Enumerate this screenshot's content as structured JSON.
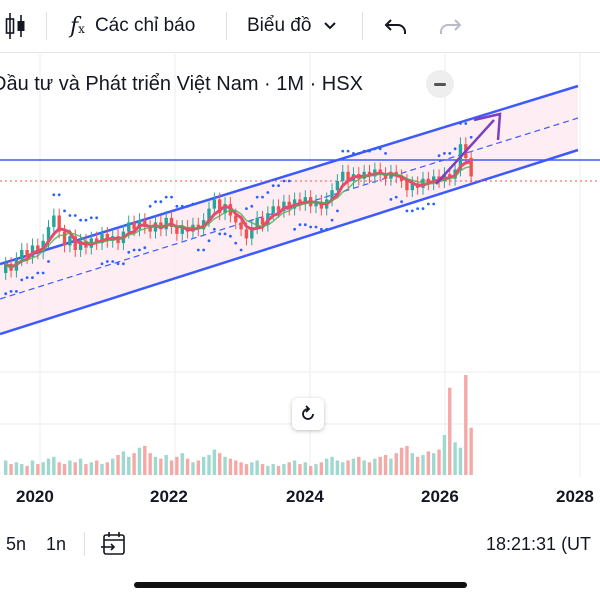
{
  "toolbar": {
    "indicators_label": "Các chỉ báo",
    "chart_type_label": "Biểu đồ"
  },
  "symbol_title": "Đầu tư và Phát triển Việt Nam · 1M · HSX",
  "x_axis_labels": [
    "2020",
    "2022",
    "2024",
    "2026",
    "2028"
  ],
  "bottom_bar": {
    "range_5y": "5n",
    "range_1y": "1n",
    "clock": "18:21:31 (UT"
  },
  "colors": {
    "up": "#26a69a",
    "down": "#ef5350",
    "channel": "#3d5afe",
    "channel_fill": "#fde8ef",
    "arrow": "#7e3fbf",
    "ma": "#e84a6f",
    "ma2": "#4caf50"
  },
  "chart_data": {
    "type": "candlestick",
    "x_ticks": [
      "2020",
      "2022",
      "2024",
      "2026",
      "2028"
    ],
    "candles": [
      {
        "o": 0.3,
        "c": 0.34
      },
      {
        "o": 0.34,
        "c": 0.31
      },
      {
        "o": 0.31,
        "c": 0.36
      },
      {
        "o": 0.36,
        "c": 0.4
      },
      {
        "o": 0.4,
        "c": 0.37
      },
      {
        "o": 0.37,
        "c": 0.42
      },
      {
        "o": 0.42,
        "c": 0.39
      },
      {
        "o": 0.39,
        "c": 0.44
      },
      {
        "o": 0.44,
        "c": 0.5
      },
      {
        "o": 0.5,
        "c": 0.55
      },
      {
        "o": 0.55,
        "c": 0.48
      },
      {
        "o": 0.48,
        "c": 0.42
      },
      {
        "o": 0.42,
        "c": 0.46
      },
      {
        "o": 0.46,
        "c": 0.4
      },
      {
        "o": 0.4,
        "c": 0.44
      },
      {
        "o": 0.44,
        "c": 0.41
      },
      {
        "o": 0.41,
        "c": 0.45
      },
      {
        "o": 0.45,
        "c": 0.43
      },
      {
        "o": 0.43,
        "c": 0.47
      },
      {
        "o": 0.47,
        "c": 0.44
      },
      {
        "o": 0.44,
        "c": 0.46
      },
      {
        "o": 0.46,
        "c": 0.43
      },
      {
        "o": 0.43,
        "c": 0.48
      },
      {
        "o": 0.48,
        "c": 0.52
      },
      {
        "o": 0.52,
        "c": 0.49
      },
      {
        "o": 0.49,
        "c": 0.53
      },
      {
        "o": 0.53,
        "c": 0.5
      },
      {
        "o": 0.5,
        "c": 0.48
      },
      {
        "o": 0.48,
        "c": 0.52
      },
      {
        "o": 0.52,
        "c": 0.49
      },
      {
        "o": 0.49,
        "c": 0.54
      },
      {
        "o": 0.54,
        "c": 0.5
      },
      {
        "o": 0.5,
        "c": 0.47
      },
      {
        "o": 0.47,
        "c": 0.5
      },
      {
        "o": 0.5,
        "c": 0.48
      },
      {
        "o": 0.48,
        "c": 0.51
      },
      {
        "o": 0.51,
        "c": 0.49
      },
      {
        "o": 0.49,
        "c": 0.53
      },
      {
        "o": 0.53,
        "c": 0.58
      },
      {
        "o": 0.58,
        "c": 0.62
      },
      {
        "o": 0.62,
        "c": 0.56
      },
      {
        "o": 0.56,
        "c": 0.6
      },
      {
        "o": 0.6,
        "c": 0.55
      },
      {
        "o": 0.55,
        "c": 0.52
      },
      {
        "o": 0.52,
        "c": 0.49
      },
      {
        "o": 0.49,
        "c": 0.45
      },
      {
        "o": 0.45,
        "c": 0.5
      },
      {
        "o": 0.5,
        "c": 0.54
      },
      {
        "o": 0.54,
        "c": 0.51
      },
      {
        "o": 0.51,
        "c": 0.56
      },
      {
        "o": 0.56,
        "c": 0.59
      },
      {
        "o": 0.59,
        "c": 0.57
      },
      {
        "o": 0.57,
        "c": 0.61
      },
      {
        "o": 0.61,
        "c": 0.58
      },
      {
        "o": 0.58,
        "c": 0.62
      },
      {
        "o": 0.62,
        "c": 0.6
      },
      {
        "o": 0.6,
        "c": 0.63
      },
      {
        "o": 0.63,
        "c": 0.59
      },
      {
        "o": 0.59,
        "c": 0.61
      },
      {
        "o": 0.61,
        "c": 0.58
      },
      {
        "o": 0.58,
        "c": 0.62
      },
      {
        "o": 0.62,
        "c": 0.66
      },
      {
        "o": 0.66,
        "c": 0.7
      },
      {
        "o": 0.7,
        "c": 0.74
      },
      {
        "o": 0.74,
        "c": 0.7
      },
      {
        "o": 0.7,
        "c": 0.73
      },
      {
        "o": 0.73,
        "c": 0.71
      },
      {
        "o": 0.71,
        "c": 0.74
      },
      {
        "o": 0.74,
        "c": 0.72
      },
      {
        "o": 0.72,
        "c": 0.75
      },
      {
        "o": 0.75,
        "c": 0.73
      },
      {
        "o": 0.73,
        "c": 0.71
      },
      {
        "o": 0.71,
        "c": 0.74
      },
      {
        "o": 0.74,
        "c": 0.72
      },
      {
        "o": 0.72,
        "c": 0.7
      },
      {
        "o": 0.7,
        "c": 0.66
      },
      {
        "o": 0.66,
        "c": 0.69
      },
      {
        "o": 0.69,
        "c": 0.67
      },
      {
        "o": 0.67,
        "c": 0.71
      },
      {
        "o": 0.71,
        "c": 0.69
      },
      {
        "o": 0.69,
        "c": 0.72
      },
      {
        "o": 0.72,
        "c": 0.7
      },
      {
        "o": 0.7,
        "c": 0.73
      },
      {
        "o": 0.73,
        "c": 0.71
      },
      {
        "o": 0.71,
        "c": 0.75
      },
      {
        "o": 0.75,
        "c": 0.86
      },
      {
        "o": 0.86,
        "c": 0.8
      },
      {
        "o": 0.8,
        "c": 0.72
      }
    ],
    "volumes": [
      0.08,
      0.06,
      0.07,
      0.06,
      0.05,
      0.08,
      0.06,
      0.07,
      0.09,
      0.1,
      0.07,
      0.06,
      0.08,
      0.07,
      0.09,
      0.06,
      0.07,
      0.08,
      0.06,
      0.07,
      0.09,
      0.11,
      0.13,
      0.1,
      0.12,
      0.15,
      0.16,
      0.12,
      0.1,
      0.09,
      0.11,
      0.08,
      0.1,
      0.12,
      0.09,
      0.07,
      0.08,
      0.1,
      0.11,
      0.14,
      0.12,
      0.1,
      0.09,
      0.08,
      0.07,
      0.06,
      0.07,
      0.08,
      0.06,
      0.05,
      0.06,
      0.05,
      0.06,
      0.07,
      0.08,
      0.06,
      0.07,
      0.05,
      0.06,
      0.07,
      0.09,
      0.1,
      0.08,
      0.07,
      0.08,
      0.09,
      0.1,
      0.08,
      0.07,
      0.09,
      0.1,
      0.11,
      0.09,
      0.12,
      0.15,
      0.16,
      0.12,
      0.1,
      0.11,
      0.13,
      0.12,
      0.14,
      0.22,
      0.48,
      0.18,
      0.15,
      0.55,
      0.26
    ]
  }
}
